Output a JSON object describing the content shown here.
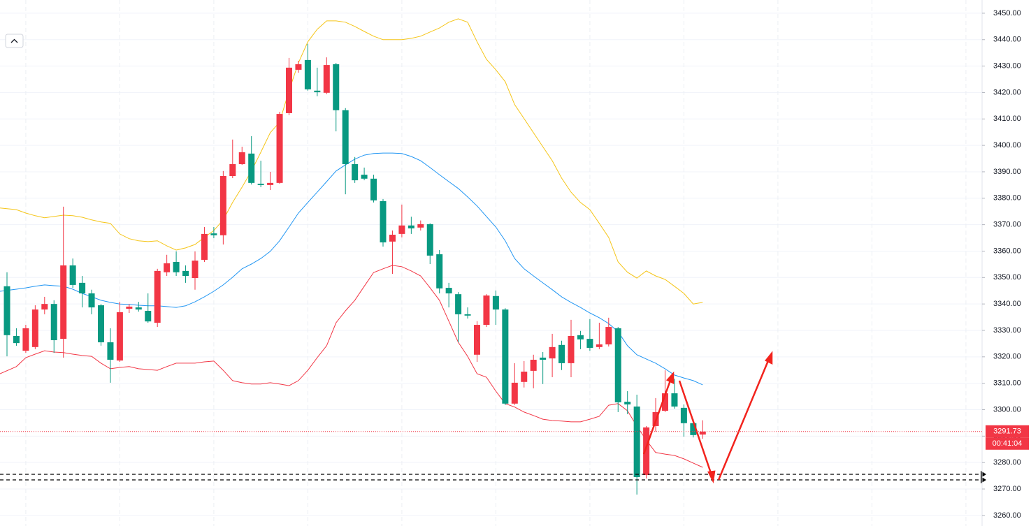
{
  "chart_data": {
    "type": "candlestick",
    "up_color": "#f23645",
    "down_color": "#089981",
    "open": [
      3346.7,
      3327.9,
      3322.3,
      3323.7,
      3337.9,
      3340.0,
      3326.8,
      3354.6,
      3348.0,
      3344.0,
      3339.5,
      3325.5,
      3318.6,
      3338.2,
      3338.7,
      3337.4,
      3332.9,
      3352.0,
      3355.9,
      3352.5,
      3349.8,
      3356.7,
      3366.7,
      3366.0,
      3388.4,
      3392.9,
      3396.9,
      3385.5,
      3385.0,
      3385.8,
      3412.2,
      3428.6,
      3432.3,
      3420.7,
      3419.9,
      3430.7,
      3413.3,
      3392.9,
      3388.9,
      3387.4,
      3378.9,
      3363.6,
      3366.5,
      3369.7,
      3368.9,
      3370.2,
      3358.8,
      3346.1,
      3343.7,
      3336.1,
      3320.8,
      3332.1,
      3343.0,
      3337.9,
      3302.3,
      3310.5,
      3314.7,
      3319.7,
      3319.4,
      3324.5,
      3317.6,
      3328.2,
      3326.8,
      3323.7,
      3324.7,
      3330.8,
      3303.0,
      3301.2,
      3275.3,
      3293.8,
      3299.6,
      3306.2,
      3300.7,
      3294.9,
      3290.6
    ],
    "high": [
      3352.0,
      3330.8,
      3332.1,
      3339.5,
      3342.7,
      3341.4,
      3376.8,
      3357.2,
      3350.6,
      3345.4,
      3340.0,
      3330.8,
      3340.8,
      3340.0,
      3340.8,
      3344.0,
      3353.3,
      3358.6,
      3359.9,
      3354.6,
      3359.9,
      3369.1,
      3369.1,
      3390.3,
      3402.2,
      3399.5,
      3403.5,
      3394.2,
      3390.0,
      3412.7,
      3433.1,
      3432.0,
      3438.4,
      3429.4,
      3433.3,
      3431.2,
      3414.1,
      3395.6,
      3391.6,
      3388.9,
      3379.7,
      3367.8,
      3377.6,
      3373.0,
      3371.6,
      3370.5,
      3360.4,
      3348.0,
      3344.5,
      3338.7,
      3333.5,
      3343.7,
      3345.1,
      3338.4,
      3317.6,
      3318.4,
      3320.8,
      3321.8,
      3328.7,
      3326.1,
      3334.0,
      3329.8,
      3334.3,
      3332.9,
      3334.8,
      3331.3,
      3307.0,
      3305.7,
      3293.8,
      3304.4,
      3314.9,
      3311.7,
      3302.0,
      3296.5,
      3296.0
    ],
    "low": [
      3320.2,
      3324.2,
      3321.5,
      3322.9,
      3336.1,
      3321.5,
      3319.7,
      3346.1,
      3338.7,
      3336.1,
      3324.2,
      3310.2,
      3318.1,
      3336.6,
      3337.1,
      3332.9,
      3331.3,
      3350.6,
      3350.6,
      3348.0,
      3345.4,
      3355.9,
      3364.9,
      3362.5,
      3387.6,
      3392.6,
      3385.2,
      3384.2,
      3383.1,
      3385.5,
      3411.4,
      3427.5,
      3420.7,
      3418.6,
      3419.4,
      3405.3,
      3381.5,
      3385.8,
      3386.8,
      3378.4,
      3361.7,
      3351.4,
      3365.2,
      3366.5,
      3367.8,
      3355.1,
      3344.0,
      3338.7,
      3325.5,
      3334.5,
      3318.1,
      3331.3,
      3332.1,
      3301.8,
      3301.8,
      3308.4,
      3308.1,
      3309.7,
      3312.3,
      3315.0,
      3312.3,
      3322.9,
      3322.3,
      3322.9,
      3323.9,
      3299.1,
      3298.3,
      3267.9,
      3274.0,
      3291.7,
      3299.1,
      3300.4,
      3289.8,
      3289.5,
      3289.0
    ],
    "close": [
      3328.2,
      3325.2,
      3330.8,
      3337.9,
      3340.0,
      3326.3,
      3354.6,
      3347.2,
      3344.0,
      3338.7,
      3325.5,
      3318.9,
      3336.9,
      3339.0,
      3337.9,
      3333.4,
      3352.5,
      3355.4,
      3352.0,
      3350.6,
      3356.4,
      3366.5,
      3366.0,
      3388.4,
      3392.9,
      3397.4,
      3385.8,
      3385.0,
      3385.8,
      3411.9,
      3429.4,
      3430.7,
      3421.2,
      3420.1,
      3430.4,
      3413.3,
      3392.9,
      3386.8,
      3387.4,
      3379.2,
      3363.3,
      3366.2,
      3369.7,
      3368.6,
      3370.2,
      3358.3,
      3345.9,
      3344.0,
      3336.1,
      3335.6,
      3332.1,
      3343.2,
      3337.9,
      3302.3,
      3310.2,
      3314.4,
      3318.9,
      3318.9,
      3323.7,
      3317.6,
      3327.9,
      3326.6,
      3323.4,
      3324.7,
      3331.3,
      3302.8,
      3302.0,
      3274.5,
      3293.3,
      3299.1,
      3306.2,
      3301.2,
      3294.9,
      3290.4,
      3291.73
    ],
    "bands": [
      {
        "color": "#f5c518",
        "values": [
          3376.3,
          3375.7,
          3374.4,
          3373.4,
          3372.6,
          3373.1,
          3373.6,
          3373.4,
          3372.8,
          3371.8,
          3371.0,
          3370.5,
          3366.5,
          3364.7,
          3363.9,
          3363.6,
          3363.9,
          3362.0,
          3360.4,
          3361.2,
          3362.5,
          3365.2,
          3367.8,
          3371.8,
          3378.4,
          3384.2,
          3390.3,
          3397.4,
          3404.8,
          3408.8,
          3420.7,
          3431.2,
          3439.2,
          3443.9,
          3447.1,
          3447.1,
          3446.6,
          3445.0,
          3443.1,
          3441.3,
          3440.0,
          3440.0,
          3440.0,
          3440.5,
          3441.3,
          3442.9,
          3444.4,
          3446.6,
          3447.9,
          3446.6,
          3439.2,
          3432.6,
          3428.6,
          3424.1,
          3415.4,
          3410.1,
          3404.8,
          3399.5,
          3394.2,
          3387.6,
          3382.3,
          3378.4,
          3375.7,
          3370.5,
          3365.2,
          3355.9,
          3352.0,
          3349.8,
          3352.5,
          3350.6,
          3349.3,
          3346.7,
          3344.0,
          3340.0,
          3340.6
        ]
      },
      {
        "color": "#2196f3",
        "values": [
          3344.8,
          3345.6,
          3346.1,
          3346.7,
          3347.2,
          3346.9,
          3346.7,
          3345.6,
          3344.0,
          3342.7,
          3341.4,
          3340.6,
          3340.0,
          3339.8,
          3339.5,
          3339.3,
          3339.3,
          3339.0,
          3338.7,
          3339.3,
          3340.8,
          3342.7,
          3344.8,
          3347.2,
          3350.1,
          3353.3,
          3355.1,
          3357.2,
          3359.9,
          3363.9,
          3369.1,
          3374.4,
          3378.4,
          3382.3,
          3386.3,
          3390.3,
          3392.6,
          3394.8,
          3396.3,
          3396.9,
          3397.1,
          3397.1,
          3396.9,
          3395.8,
          3394.2,
          3391.6,
          3388.9,
          3386.3,
          3383.7,
          3380.5,
          3377.1,
          3373.1,
          3369.1,
          3363.9,
          3357.2,
          3353.3,
          3350.6,
          3348.0,
          3345.4,
          3342.7,
          3340.6,
          3338.7,
          3336.6,
          3334.8,
          3332.6,
          3329.5,
          3324.2,
          3320.8,
          3319.2,
          3317.6,
          3315.5,
          3313.1,
          3312.0,
          3311.0,
          3309.4
        ]
      },
      {
        "color": "#f23645",
        "values": [
          3313.6,
          3316.3,
          3319.7,
          3321.0,
          3322.3,
          3321.8,
          3321.6,
          3321.0,
          3320.5,
          3320.2,
          3317.6,
          3315.5,
          3316.0,
          3316.3,
          3315.5,
          3315.2,
          3314.9,
          3316.3,
          3317.6,
          3317.6,
          3317.6,
          3318.1,
          3318.4,
          3314.9,
          3311.0,
          3310.2,
          3309.7,
          3309.7,
          3310.2,
          3309.7,
          3309.1,
          3311.0,
          3314.9,
          3319.7,
          3324.2,
          3332.9,
          3337.4,
          3341.4,
          3346.7,
          3351.9,
          3353.3,
          3354.6,
          3354.1,
          3352.5,
          3350.6,
          3346.1,
          3341.4,
          3333.5,
          3325.5,
          3320.2,
          3313.6,
          3312.3,
          3307.0,
          3302.3,
          3301.0,
          3299.1,
          3297.8,
          3296.4,
          3295.9,
          3295.7,
          3295.4,
          3295.4,
          3296.4,
          3297.5,
          3301.7,
          3302.3,
          3299.6,
          3293.8,
          3288.5,
          3283.8,
          3283.2,
          3282.7,
          3281.4,
          3279.8,
          3278.2
        ]
      }
    ],
    "ylim": [
      3256,
      3455
    ],
    "yticks": [
      {
        "value": 3260,
        "label": "3260.00"
      },
      {
        "value": 3270,
        "label": "3270.00"
      },
      {
        "value": 3280,
        "label": "3280.00"
      },
      {
        "value": 3290,
        "label": "3290.00"
      },
      {
        "value": 3300,
        "label": "3300.00"
      },
      {
        "value": 3310,
        "label": "3310.00"
      },
      {
        "value": 3320,
        "label": "3320.00"
      },
      {
        "value": 3330,
        "label": "3330.00"
      },
      {
        "value": 3340,
        "label": "3340.00"
      },
      {
        "value": 3350,
        "label": "3350.00"
      },
      {
        "value": 3360,
        "label": "3360.00"
      },
      {
        "value": 3370,
        "label": "3370.00"
      },
      {
        "value": 3380,
        "label": "3380.00"
      },
      {
        "value": 3390,
        "label": "3390.00"
      },
      {
        "value": 3400,
        "label": "3400.00"
      },
      {
        "value": 3410,
        "label": "3410.00"
      },
      {
        "value": 3420,
        "label": "3420.00"
      },
      {
        "value": 3430,
        "label": "3430.00"
      },
      {
        "value": 3440,
        "label": "3440.00"
      },
      {
        "value": 3450,
        "label": "3450.00"
      }
    ],
    "grid": true,
    "last_price_label": "3291.73",
    "countdown": "00:41:04"
  }
}
